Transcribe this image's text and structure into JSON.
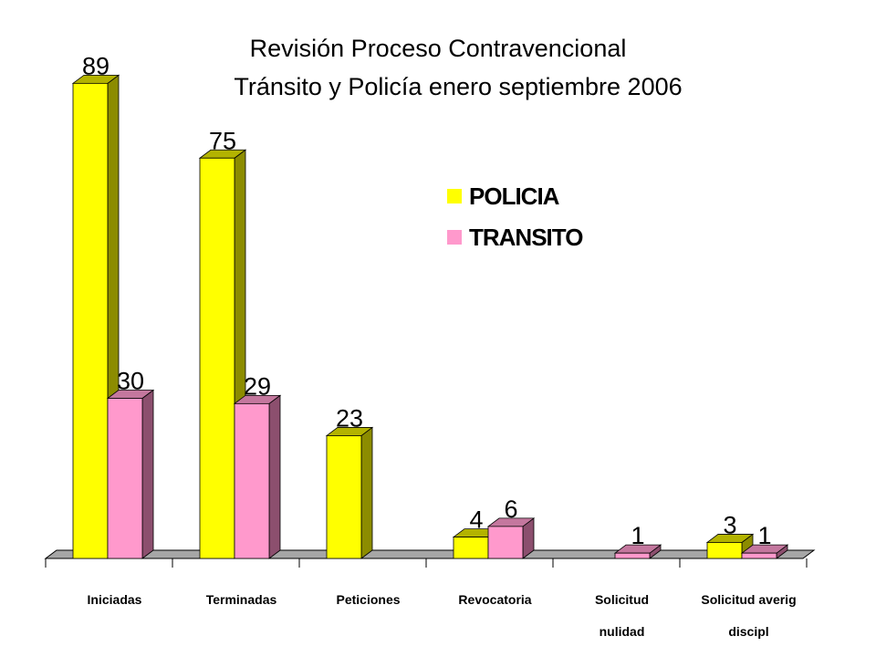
{
  "chart_data": {
    "type": "bar",
    "title_line1": "Revisión Proceso Contravencional",
    "title_line2": "Tránsito y Policía enero septiembre 2006",
    "categories": [
      [
        "Iniciadas"
      ],
      [
        "Terminadas"
      ],
      [
        "Peticiones"
      ],
      [
        "Revocatoria"
      ],
      [
        "Solicitud",
        "nulidad"
      ],
      [
        "Solicitud averig",
        "discipl"
      ]
    ],
    "series": [
      {
        "name": "POLICIA",
        "values": [
          89,
          75,
          23,
          4,
          null,
          3
        ],
        "color": "#FFFF00",
        "side_color": "#8C8C00",
        "top_color": "#B3B300"
      },
      {
        "name": "TRANSITO",
        "values": [
          30,
          29,
          null,
          6,
          1,
          1
        ],
        "color": "#FF99CC",
        "side_color": "#8C4F6E",
        "top_color": "#C4779E"
      }
    ],
    "ylim": [
      0,
      100
    ],
    "grid": false,
    "legend_position": "top-right",
    "floor_color": "#A6A6A6",
    "floor_edge_color": "#808080"
  }
}
